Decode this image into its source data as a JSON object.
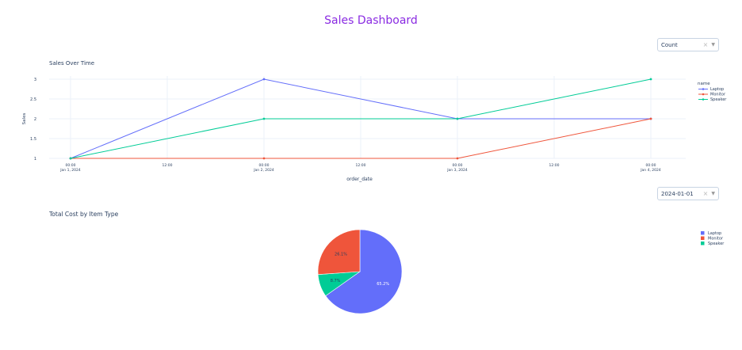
{
  "page": {
    "title": "Sales Dashboard"
  },
  "dropdown_metric": {
    "value": "Count",
    "clear_icon": "close-icon",
    "toggle_icon": "chevron-down-icon"
  },
  "dropdown_date": {
    "value": "2024-01-01",
    "clear_icon": "close-icon",
    "toggle_icon": "chevron-down-icon"
  },
  "chart_data": [
    {
      "type": "line",
      "title": "Sales Over Time",
      "xlabel": "order_date",
      "ylabel": "Sales",
      "x": [
        "2024-01-01 00:00",
        "2024-01-02 00:00",
        "2024-01-03 00:00",
        "2024-01-04 00:00"
      ],
      "x_ticks": [
        {
          "x": "2024-01-01 00:00",
          "line1": "00:00",
          "line2": "Jan 1, 2024"
        },
        {
          "x": "2024-01-01 12:00",
          "line1": "12:00",
          "line2": ""
        },
        {
          "x": "2024-01-02 00:00",
          "line1": "00:00",
          "line2": "Jan 2, 2024"
        },
        {
          "x": "2024-01-02 12:00",
          "line1": "12:00",
          "line2": ""
        },
        {
          "x": "2024-01-03 00:00",
          "line1": "00:00",
          "line2": "Jan 3, 2024"
        },
        {
          "x": "2024-01-03 12:00",
          "line1": "12:00",
          "line2": ""
        },
        {
          "x": "2024-01-04 00:00",
          "line1": "00:00",
          "line2": "Jan 4, 2024"
        }
      ],
      "y_ticks": [
        "1",
        "1.5",
        "2",
        "2.5",
        "3"
      ],
      "ylim": [
        1,
        3
      ],
      "legend_title": "name",
      "legend_position": "top-right",
      "grid": true,
      "series": [
        {
          "name": "Laptop",
          "color": "#636efa",
          "values": [
            1,
            3,
            2,
            2
          ]
        },
        {
          "name": "Monitor",
          "color": "#ef553b",
          "values": [
            1,
            1,
            1,
            2
          ]
        },
        {
          "name": "Speaker",
          "color": "#00cc96",
          "values": [
            1,
            2,
            2,
            3
          ]
        }
      ]
    },
    {
      "type": "pie",
      "title": "Total Cost by Item Type",
      "legend_position": "top-right",
      "slices": [
        {
          "name": "Laptop",
          "value": 65.2,
          "label": "65.2%",
          "color": "#636efa"
        },
        {
          "name": "Speaker",
          "value": 8.7,
          "label": "8.7%",
          "color": "#00cc96"
        },
        {
          "name": "Monitor",
          "value": 26.1,
          "label": "26.1%",
          "color": "#ef553b"
        }
      ],
      "legend": [
        {
          "name": "Laptop",
          "color": "#636efa"
        },
        {
          "name": "Monitor",
          "color": "#ef553b"
        },
        {
          "name": "Speaker",
          "color": "#00cc96"
        }
      ]
    }
  ]
}
